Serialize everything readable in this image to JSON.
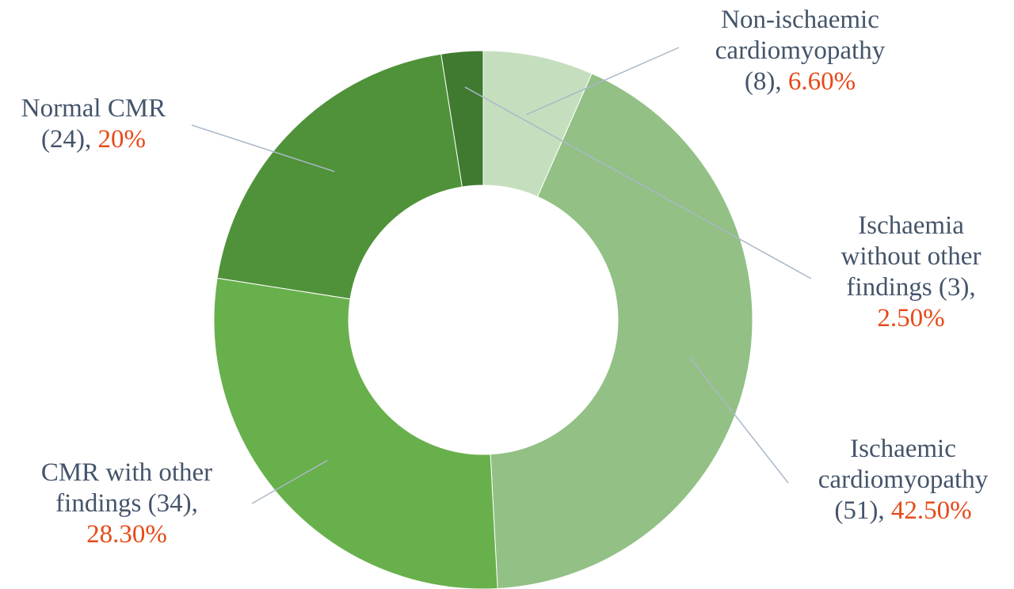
{
  "chart_data": {
    "type": "pie",
    "donut": true,
    "start_angle_deg": 0,
    "direction": "clockwise",
    "slices": [
      {
        "label_lines": [
          "Non-ischaemic",
          "cardiomyopathy"
        ],
        "count": "(8)",
        "pct_text": "6.60%",
        "value": 6.6,
        "color": "#c5dfbe"
      },
      {
        "label_lines": [
          "Ischaemic",
          "cardiomyopathy"
        ],
        "count": "(51)",
        "pct_text": "42.50%",
        "value": 42.5,
        "color": "#92c085"
      },
      {
        "label_lines": [
          "CMR with other",
          "findings"
        ],
        "count": "(34)",
        "pct_text": "28.30%",
        "value": 28.3,
        "color": "#68b04c"
      },
      {
        "label_lines": [
          "Normal CMR"
        ],
        "count": "(24)",
        "pct_text": "20%",
        "value": 20,
        "color": "#4f9239"
      },
      {
        "label_lines": [
          "Ischaemia",
          "without other",
          "findings"
        ],
        "count": "(3)",
        "pct_text": "2.50%",
        "value": 2.5,
        "color": "#3f7a30"
      }
    ]
  }
}
